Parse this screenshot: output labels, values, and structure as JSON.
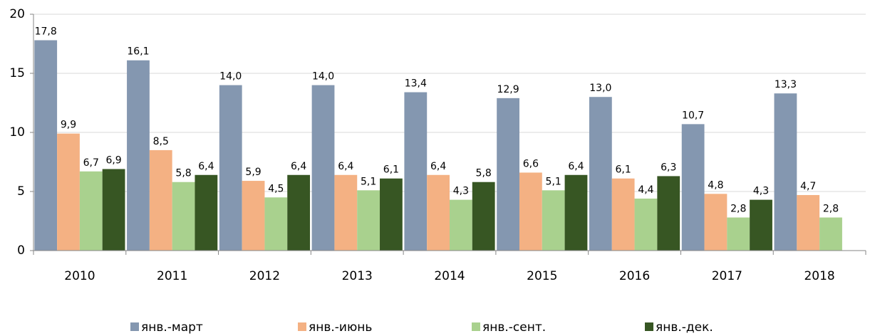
{
  "chart_data": {
    "type": "bar",
    "categories": [
      "2010",
      "2011",
      "2012",
      "2013",
      "2014",
      "2015",
      "2016",
      "2017",
      "2018"
    ],
    "series": [
      {
        "name": "янв.-март",
        "color": "#8497b0",
        "values": [
          17.8,
          16.1,
          14.0,
          14.0,
          13.4,
          12.9,
          13.0,
          10.7,
          13.3
        ],
        "value_labels": [
          "17,8",
          "16,1",
          "14,0",
          "14,0",
          "13,4",
          "12,9",
          "13,0",
          "10,7",
          "13,3"
        ]
      },
      {
        "name": "янв.-июнь",
        "color": "#f4b183",
        "values": [
          9.9,
          8.5,
          5.9,
          6.4,
          6.4,
          6.6,
          6.1,
          4.8,
          4.7
        ],
        "value_labels": [
          "9,9",
          "8,5",
          "5,9",
          "6,4",
          "6,4",
          "6,6",
          "6,1",
          "4,8",
          "4,7"
        ]
      },
      {
        "name": "янв.-сент.",
        "color": "#a9d18e",
        "values": [
          6.7,
          5.8,
          4.5,
          5.1,
          4.3,
          5.1,
          4.4,
          2.8,
          2.8
        ],
        "value_labels": [
          "6,7",
          "5,8",
          "4,5",
          "5,1",
          "4,3",
          "5,1",
          "4,4",
          "2,8",
          "2,8"
        ]
      },
      {
        "name": "янв.-дек.",
        "color": "#375623",
        "values": [
          6.9,
          6.4,
          6.4,
          6.1,
          5.8,
          6.4,
          6.3,
          4.3,
          null
        ],
        "value_labels": [
          "6,9",
          "6,4",
          "6,4",
          "6,1",
          "5,8",
          "6,4",
          "6,3",
          "4,3",
          null
        ]
      }
    ],
    "ylim": [
      0,
      20
    ],
    "yticks": [
      0,
      5,
      10,
      15,
      20
    ],
    "grid": true,
    "legend": "bottom"
  }
}
